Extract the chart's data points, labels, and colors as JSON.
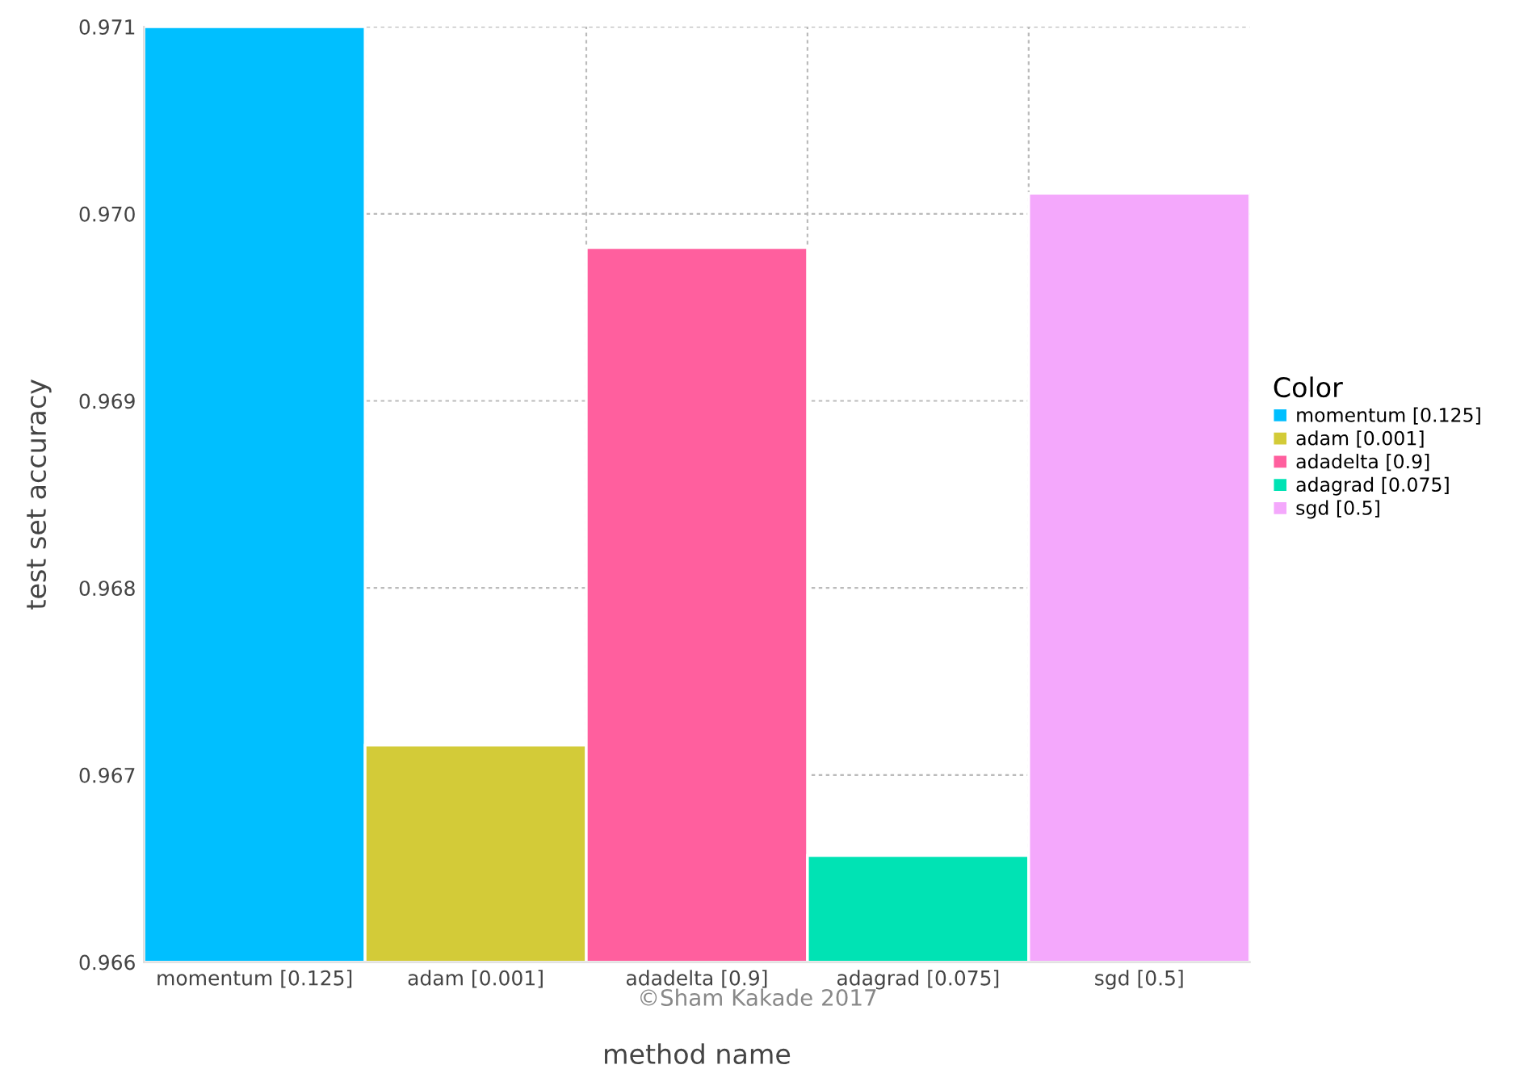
{
  "chart_data": {
    "type": "bar",
    "categories": [
      "momentum [0.125]",
      "adam [0.001]",
      "adadelta [0.9]",
      "adagrad [0.075]",
      "sgd [0.5]"
    ],
    "series": [
      {
        "name": "momentum [0.125]",
        "color": "#00bfff",
        "values": [
          0.971,
          null,
          null,
          null,
          null
        ]
      },
      {
        "name": "adam [0.001]",
        "color": "#d3cb38",
        "values": [
          null,
          0.96716,
          null,
          null,
          null
        ]
      },
      {
        "name": "adadelta [0.9]",
        "color": "#ff5f9e",
        "values": [
          null,
          null,
          0.96982,
          null,
          null
        ]
      },
      {
        "name": "adagrad [0.075]",
        "color": "#00e3b4",
        "values": [
          null,
          null,
          null,
          0.96657,
          null
        ]
      },
      {
        "name": "sgd [0.5]",
        "color": "#f4a8fc",
        "values": [
          null,
          null,
          null,
          null,
          0.97011
        ]
      }
    ],
    "xlabel": "method name",
    "ylabel": "test set accuracy",
    "legend_title": "Color",
    "ylim": [
      0.966,
      0.971
    ],
    "yticks": [
      {
        "value": 0.966,
        "label": "0.966"
      },
      {
        "value": 0.967,
        "label": "0.967"
      },
      {
        "value": 0.968,
        "label": "0.968"
      },
      {
        "value": 0.969,
        "label": "0.969"
      },
      {
        "value": 0.97,
        "label": "0.970"
      },
      {
        "value": 0.971,
        "label": "0.971"
      }
    ],
    "grid": true,
    "legend": "right",
    "annotations": [
      "©Sham Kakade 2017"
    ]
  }
}
